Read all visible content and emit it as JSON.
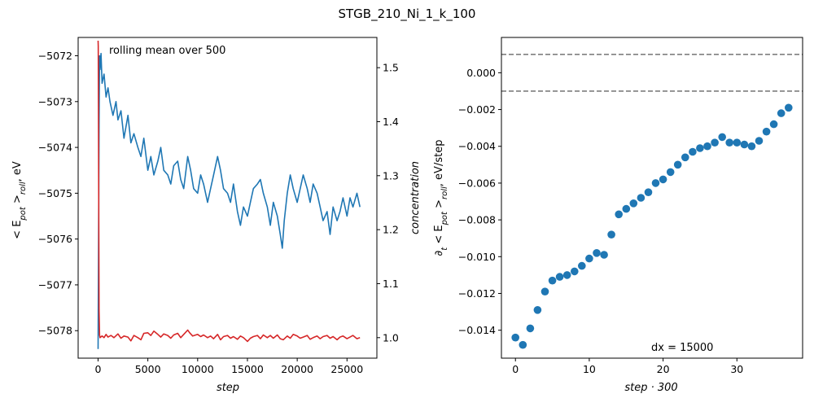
{
  "figure": {
    "title": "STGB_210_Ni_1_k_100"
  },
  "chart_data": [
    {
      "type": "line",
      "annotation": "rolling mean over 500",
      "xlabel": "step",
      "ylabel": "< E_pot >_roll, eV",
      "ylabel_right": "concentration",
      "xlim": [
        -2000,
        28000
      ],
      "ylim": [
        -5078.6,
        -5071.6
      ],
      "ylim_right": [
        0.962,
        1.556
      ],
      "xticks": [
        "0",
        "5000",
        "10000",
        "15000",
        "20000",
        "25000"
      ],
      "xtick_values": [
        0,
        5000,
        10000,
        15000,
        20000,
        25000
      ],
      "yticks": [
        "−5072",
        "−5073",
        "−5074",
        "−5075",
        "−5076",
        "−5077",
        "−5078"
      ],
      "ytick_values": [
        -5072,
        -5073,
        -5074,
        -5075,
        -5076,
        -5077,
        -5078
      ],
      "yticks_right": [
        "1.0",
        "1.1",
        "1.2",
        "1.3",
        "1.4",
        "1.5"
      ],
      "ytick_values_right": [
        1.0,
        1.1,
        1.2,
        1.3,
        1.4,
        1.5
      ],
      "series": [
        {
          "axis": "left",
          "color": "#1f77b4",
          "x": [
            0,
            50,
            100,
            150,
            200,
            300,
            400,
            600,
            800,
            1000,
            1200,
            1500,
            1800,
            2000,
            2300,
            2600,
            3000,
            3300,
            3600,
            4000,
            4300,
            4600,
            5000,
            5300,
            5600,
            6000,
            6300,
            6600,
            7000,
            7300,
            7600,
            8000,
            8300,
            8600,
            9000,
            9300,
            9600,
            10000,
            10300,
            10600,
            11000,
            11300,
            11600,
            12000,
            12300,
            12600,
            13000,
            13300,
            13600,
            14000,
            14300,
            14600,
            15000,
            15300,
            15600,
            16000,
            16300,
            16600,
            17000,
            17300,
            17600,
            18000,
            18300,
            18500,
            18700,
            19000,
            19300,
            19600,
            20000,
            20300,
            20600,
            21000,
            21300,
            21600,
            22000,
            22300,
            22600,
            23000,
            23300,
            23600,
            24000,
            24300,
            24600,
            25000,
            25300,
            25600,
            26000,
            26300
          ],
          "y": [
            -5078.4,
            -5076.0,
            -5073.5,
            -5072.0,
            -5072.3,
            -5071.95,
            -5072.6,
            -5072.4,
            -5072.9,
            -5072.7,
            -5073.0,
            -5073.3,
            -5073.0,
            -5073.4,
            -5073.2,
            -5073.8,
            -5073.3,
            -5073.9,
            -5073.7,
            -5074.0,
            -5074.2,
            -5073.8,
            -5074.5,
            -5074.2,
            -5074.6,
            -5074.3,
            -5074.0,
            -5074.5,
            -5074.6,
            -5074.8,
            -5074.4,
            -5074.3,
            -5074.7,
            -5074.9,
            -5074.2,
            -5074.5,
            -5074.9,
            -5075.0,
            -5074.6,
            -5074.8,
            -5075.2,
            -5074.9,
            -5074.6,
            -5074.2,
            -5074.5,
            -5074.9,
            -5075.0,
            -5075.2,
            -5074.8,
            -5075.4,
            -5075.7,
            -5075.3,
            -5075.5,
            -5075.2,
            -5074.9,
            -5074.8,
            -5074.7,
            -5075.0,
            -5075.3,
            -5075.7,
            -5075.2,
            -5075.5,
            -5075.9,
            -5076.2,
            -5075.6,
            -5075.0,
            -5074.6,
            -5074.9,
            -5075.2,
            -5074.9,
            -5074.6,
            -5074.9,
            -5075.2,
            -5074.8,
            -5075.0,
            -5075.3,
            -5075.6,
            -5075.4,
            -5075.9,
            -5075.3,
            -5075.6,
            -5075.4,
            -5075.1,
            -5075.5,
            -5075.1,
            -5075.3,
            -5075.0,
            -5075.3
          ]
        },
        {
          "axis": "right",
          "color": "#d62728",
          "x": [
            0,
            20,
            60,
            100,
            150,
            200,
            400,
            600,
            800,
            1000,
            1300,
            1600,
            2000,
            2300,
            2600,
            3000,
            3300,
            3600,
            4000,
            4300,
            4600,
            5000,
            5300,
            5600,
            6000,
            6300,
            6600,
            7000,
            7300,
            7600,
            8000,
            8300,
            8600,
            9000,
            9200,
            9500,
            10000,
            10300,
            10600,
            11000,
            11300,
            11600,
            12000,
            12300,
            12600,
            13000,
            13300,
            13600,
            14000,
            14300,
            14600,
            15000,
            15300,
            15600,
            16000,
            16300,
            16600,
            17000,
            17300,
            17600,
            18000,
            18300,
            18600,
            19000,
            19300,
            19600,
            20000,
            20300,
            20600,
            21000,
            21300,
            21600,
            22000,
            22300,
            22600,
            23000,
            23300,
            23600,
            24000,
            24300,
            24600,
            25000,
            25300,
            25600,
            26000,
            26300
          ],
          "y": [
            1.55,
            1.54,
            1.3,
            1.05,
            1.005,
            1.0,
            1.003,
            1.0,
            1.006,
            1.001,
            1.004,
            1.0,
            1.007,
            0.999,
            1.003,
            1.001,
            0.994,
            1.004,
            1.0,
            0.996,
            1.008,
            1.009,
            1.004,
            1.012,
            1.006,
            1.001,
            1.007,
            1.004,
            0.999,
            1.005,
            1.008,
            1.0,
            1.006,
            1.014,
            1.009,
            1.003,
            1.006,
            1.002,
            1.005,
            1.0,
            1.003,
            0.998,
            1.006,
            0.996,
            1.002,
            1.004,
            0.999,
            1.002,
            0.997,
            1.003,
            1.0,
            0.993,
            0.999,
            1.002,
            1.004,
            0.998,
            1.005,
            1.0,
            1.004,
            0.999,
            1.005,
            0.998,
            0.996,
            1.003,
            0.999,
            1.006,
            1.003,
            0.999,
            1.001,
            1.004,
            0.997,
            1.0,
            1.003,
            0.998,
            1.002,
            1.004,
            0.999,
            1.002,
            0.996,
            1.001,
            1.003,
            0.998,
            1.001,
            1.004,
            0.998,
            1.0
          ]
        }
      ]
    },
    {
      "type": "scatter",
      "annotation": "dx = 15000",
      "xlabel": "step · 300",
      "ylabel": "∂_t < E_pot >_roll, eV/step",
      "xlim": [
        -1.9,
        38.9
      ],
      "ylim": [
        -0.01552,
        0.00192
      ],
      "xticks": [
        "0",
        "10",
        "20",
        "30"
      ],
      "xtick_values": [
        0,
        10,
        20,
        30
      ],
      "yticks": [
        "0.000",
        "−0.002",
        "−0.004",
        "−0.006",
        "−0.008",
        "−0.010",
        "−0.012",
        "−0.014"
      ],
      "ytick_values": [
        0.0,
        -0.002,
        -0.004,
        -0.006,
        -0.008,
        -0.01,
        -0.012,
        -0.014
      ],
      "hlines": [
        0.001,
        -0.001
      ],
      "color": "#1f77b4",
      "x": [
        0,
        1,
        2,
        3,
        4,
        5,
        6,
        7,
        8,
        9,
        10,
        11,
        12,
        13,
        14,
        15,
        16,
        17,
        18,
        19,
        20,
        21,
        22,
        23,
        24,
        25,
        26,
        27,
        28,
        29,
        30,
        31,
        32,
        33,
        34,
        35,
        36,
        37
      ],
      "y": [
        -0.0144,
        -0.0148,
        -0.0139,
        -0.0129,
        -0.0119,
        -0.0113,
        -0.0111,
        -0.011,
        -0.0108,
        -0.0105,
        -0.0101,
        -0.0098,
        -0.0099,
        -0.0088,
        -0.0077,
        -0.0074,
        -0.0071,
        -0.0068,
        -0.0065,
        -0.006,
        -0.0058,
        -0.0054,
        -0.005,
        -0.0046,
        -0.0043,
        -0.0041,
        -0.004,
        -0.0038,
        -0.0035,
        -0.0038,
        -0.0038,
        -0.0039,
        -0.004,
        -0.0037,
        -0.0032,
        -0.0028,
        -0.0022,
        -0.0019
      ]
    }
  ]
}
